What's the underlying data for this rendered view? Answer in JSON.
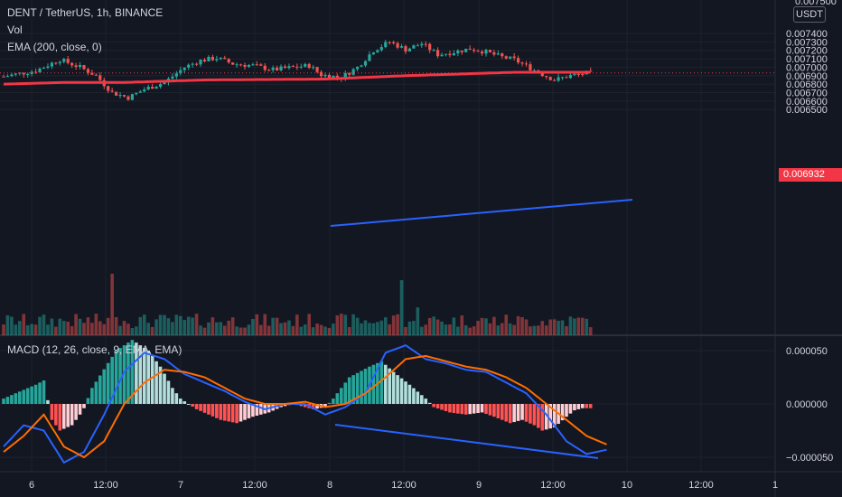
{
  "header": {
    "symbol": "DENT / TetherUS, 1h, BINANCE",
    "vol": "Vol",
    "ema": "EMA (200, close, 0)",
    "macd": "MACD (12, 26, close, 9, EMA, EMA)"
  },
  "price_axis": {
    "currency": "USDT",
    "last_price": "0.006932",
    "top_clip": "0.007500"
  },
  "colors": {
    "up": "#26a69a",
    "down": "#ef5350",
    "ema": "#f23645",
    "trendline": "#2962ff",
    "macd_line": "#2962ff",
    "signal_line": "#ff6d00",
    "hist_up_strong": "#26a69a",
    "hist_up_weak": "#b2dfdb",
    "hist_down_strong": "#ff5252",
    "hist_down_weak": "#ffcdd2"
  },
  "chart_data": [
    {
      "type": "candlestick",
      "title": "DENT / TetherUS, 1h, BINANCE",
      "ylim": [
        0.00643,
        0.00751
      ],
      "y_ticks": [
        "0.007400",
        "0.007300",
        "0.007200",
        "0.007100",
        "0.007000",
        "0.006900",
        "0.006800",
        "0.006700",
        "0.006600",
        "0.006500"
      ],
      "x_ticks": [
        "6",
        "12:00",
        "7",
        "12:00",
        "8",
        "12:00",
        "9",
        "12:00",
        "10",
        "12:00",
        "1"
      ],
      "close_path": [
        [
          0,
          0.00689
        ],
        [
          8,
          0.00696
        ],
        [
          14,
          0.00709
        ],
        [
          19,
          0.007
        ],
        [
          23,
          0.0069
        ],
        [
          27,
          0.0067
        ],
        [
          31,
          0.00664
        ],
        [
          35,
          0.00674
        ],
        [
          40,
          0.00682
        ],
        [
          45,
          0.007
        ],
        [
          49,
          0.00708
        ],
        [
          53,
          0.00711
        ],
        [
          57,
          0.00704
        ],
        [
          62,
          0.00702
        ],
        [
          67,
          0.00697
        ],
        [
          72,
          0.007
        ],
        [
          76,
          0.00702
        ],
        [
          79,
          0.00691
        ],
        [
          84,
          0.00688
        ],
        [
          88,
          0.007
        ],
        [
          92,
          0.0072
        ],
        [
          96,
          0.0073
        ],
        [
          100,
          0.00721
        ],
        [
          104,
          0.00728
        ],
        [
          108,
          0.00715
        ],
        [
          112,
          0.00718
        ],
        [
          116,
          0.00722
        ],
        [
          120,
          0.00718
        ],
        [
          124,
          0.00712
        ],
        [
          127,
          0.00709
        ],
        [
          129,
          0.00704
        ],
        [
          133,
          0.00694
        ],
        [
          137,
          0.00685
        ],
        [
          141,
          0.0069
        ],
        [
          145,
          0.00693
        ]
      ],
      "volume_spikes": {
        "27": 3.2,
        "28": 2.4,
        "98": 2.0,
        "99": 3.1,
        "103": 1.5
      },
      "ema_200": [
        [
          0,
          0.0068
        ],
        [
          15,
          0.00682
        ],
        [
          30,
          0.00682
        ],
        [
          50,
          0.00685
        ],
        [
          80,
          0.00686
        ],
        [
          100,
          0.0069
        ],
        [
          120,
          0.00693
        ],
        [
          127,
          0.00694
        ],
        [
          145,
          0.00694
        ]
      ],
      "trendline": [
        [
          0.0068,
          380,
          366
        ],
        [
          0.0068,
          680,
          700
        ]
      ]
    },
    {
      "type": "macd",
      "title": "MACD (12, 26, close, 9, EMA, EMA)",
      "ylim": [
        -8.5e-05,
        7.5e-05
      ],
      "y_ticks": [
        "0.000050",
        "0.000000",
        "−0.000050"
      ],
      "macd_line": [
        [
          0,
          -4e-05
        ],
        [
          5,
          -2e-05
        ],
        [
          10,
          -2.5e-05
        ],
        [
          15,
          -5.5e-05
        ],
        [
          20,
          -4.5e-05
        ],
        [
          25,
          -1e-05
        ],
        [
          30,
          3e-05
        ],
        [
          35,
          4.8e-05
        ],
        [
          40,
          4.2e-05
        ],
        [
          45,
          2.8e-05
        ],
        [
          50,
          2e-05
        ],
        [
          55,
          1.2e-05
        ],
        [
          60,
          2e-06
        ],
        [
          65,
          -5e-06
        ],
        [
          70,
          0.0
        ],
        [
          75,
          0.0
        ],
        [
          80,
          -1e-05
        ],
        [
          85,
          -3e-06
        ],
        [
          90,
          1e-05
        ],
        [
          95,
          4.8e-05
        ],
        [
          100,
          5.5e-05
        ],
        [
          105,
          4.2e-05
        ],
        [
          110,
          3.8e-05
        ],
        [
          115,
          3.2e-05
        ],
        [
          120,
          3e-05
        ],
        [
          125,
          2e-05
        ],
        [
          130,
          1e-05
        ],
        [
          135,
          -1e-05
        ],
        [
          140,
          -3.5e-05
        ],
        [
          145,
          -4.7e-05
        ],
        [
          150,
          -4.3e-05
        ]
      ],
      "signal_line": [
        [
          0,
          -4.5e-05
        ],
        [
          5,
          -3e-05
        ],
        [
          10,
          -1e-05
        ],
        [
          15,
          -4e-05
        ],
        [
          20,
          -5e-05
        ],
        [
          25,
          -3.5e-05
        ],
        [
          30,
          0.0
        ],
        [
          35,
          2e-05
        ],
        [
          40,
          3.2e-05
        ],
        [
          45,
          3e-05
        ],
        [
          50,
          2.5e-05
        ],
        [
          55,
          1.5e-05
        ],
        [
          60,
          5e-06
        ],
        [
          65,
          0.0
        ],
        [
          70,
          0.0
        ],
        [
          75,
          2e-06
        ],
        [
          80,
          -3e-06
        ],
        [
          85,
          0.0
        ],
        [
          90,
          1e-05
        ],
        [
          95,
          2.5e-05
        ],
        [
          100,
          4.2e-05
        ],
        [
          105,
          4.5e-05
        ],
        [
          110,
          4e-05
        ],
        [
          115,
          3.5e-05
        ],
        [
          120,
          3.2e-05
        ],
        [
          125,
          2.5e-05
        ],
        [
          130,
          1.5e-05
        ],
        [
          135,
          0.0
        ],
        [
          140,
          -1.5e-05
        ],
        [
          145,
          -3e-05
        ],
        [
          150,
          -3.8e-05
        ]
      ],
      "histogram_envelope": [
        [
          0,
          5e-06
        ],
        [
          3,
          1e-05
        ],
        [
          8,
          1.8e-05
        ],
        [
          10,
          2.2e-05
        ],
        [
          12,
          -1.5e-05
        ],
        [
          14,
          -2.5e-05
        ],
        [
          17,
          -2e-05
        ],
        [
          19,
          -1e-05
        ],
        [
          20,
          -4e-06
        ],
        [
          22,
          1.5e-05
        ],
        [
          28,
          5e-05
        ],
        [
          32,
          6e-05
        ],
        [
          36,
          5e-05
        ],
        [
          39,
          3.5e-05
        ],
        [
          42,
          1.5e-05
        ],
        [
          44,
          5e-06
        ],
        [
          46,
          0.0
        ],
        [
          48,
          -5e-06
        ],
        [
          51,
          -1e-05
        ],
        [
          54,
          -1.5e-05
        ],
        [
          58,
          -1.8e-05
        ],
        [
          62,
          -1.2e-05
        ],
        [
          66,
          -8e-06
        ],
        [
          69,
          -3e-06
        ],
        [
          72,
          0.0
        ],
        [
          74,
          -2e-06
        ],
        [
          77,
          -5e-06
        ],
        [
          80,
          -3e-06
        ],
        [
          82,
          5e-06
        ],
        [
          86,
          2.5e-05
        ],
        [
          91,
          3.5e-05
        ],
        [
          94,
          4e-05
        ],
        [
          97,
          3e-05
        ],
        [
          101,
          1.8e-05
        ],
        [
          105,
          5e-06
        ],
        [
          107,
          -3e-06
        ],
        [
          111,
          -8e-06
        ],
        [
          115,
          -1e-05
        ],
        [
          119,
          -8e-06
        ],
        [
          122,
          -1.2e-05
        ],
        [
          126,
          -1.8e-05
        ],
        [
          129,
          -1.5e-05
        ],
        [
          132,
          -2e-05
        ],
        [
          134,
          -2.5e-05
        ],
        [
          137,
          -2.2e-05
        ],
        [
          140,
          -1.2e-05
        ],
        [
          142,
          -6e-06
        ],
        [
          144,
          -4e-06
        ]
      ],
      "trendline": [
        [
          380,
          470
        ],
        [
          662,
          508
        ]
      ]
    }
  ]
}
